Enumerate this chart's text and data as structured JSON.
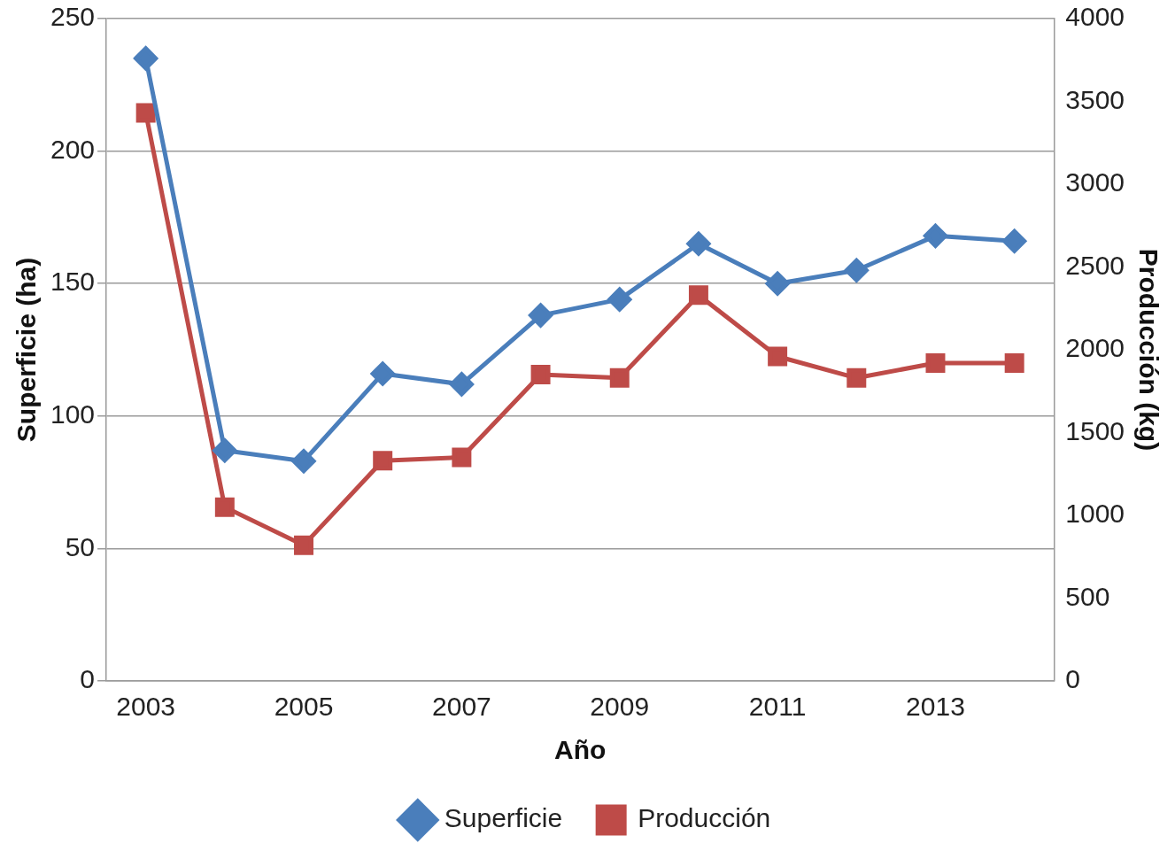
{
  "chart_data": {
    "type": "line",
    "xlabel": "Año",
    "ylabel": "Superficie (ha)",
    "y2label": "Producción (kg)",
    "categories": [
      "2003",
      null,
      "2005",
      null,
      "2007",
      null,
      "2009",
      null,
      "2011",
      null,
      "2013",
      null
    ],
    "series": [
      {
        "name": "Superficie",
        "color": "#4a7ebb",
        "marker": "diamond",
        "values": [
          235,
          87,
          83,
          116,
          112,
          138,
          144,
          165,
          150,
          155,
          168,
          166
        ]
      },
      {
        "name": "Producción",
        "color": "#be4b48",
        "marker": "square",
        "axis": "y2",
        "values": [
          3430,
          1050,
          820,
          1330,
          1350,
          1850,
          1830,
          2330,
          1960,
          1830,
          1920,
          1920
        ]
      }
    ],
    "ylim": [
      0,
      250
    ],
    "yticks": [
      0,
      50,
      100,
      150,
      200,
      250
    ],
    "y2lim": [
      0,
      4000
    ],
    "y2ticks": [
      0,
      500,
      1000,
      1500,
      2000,
      2500,
      3000,
      3500,
      4000
    ],
    "grid": "y",
    "legend": "bottom",
    "line_style": "solid"
  }
}
